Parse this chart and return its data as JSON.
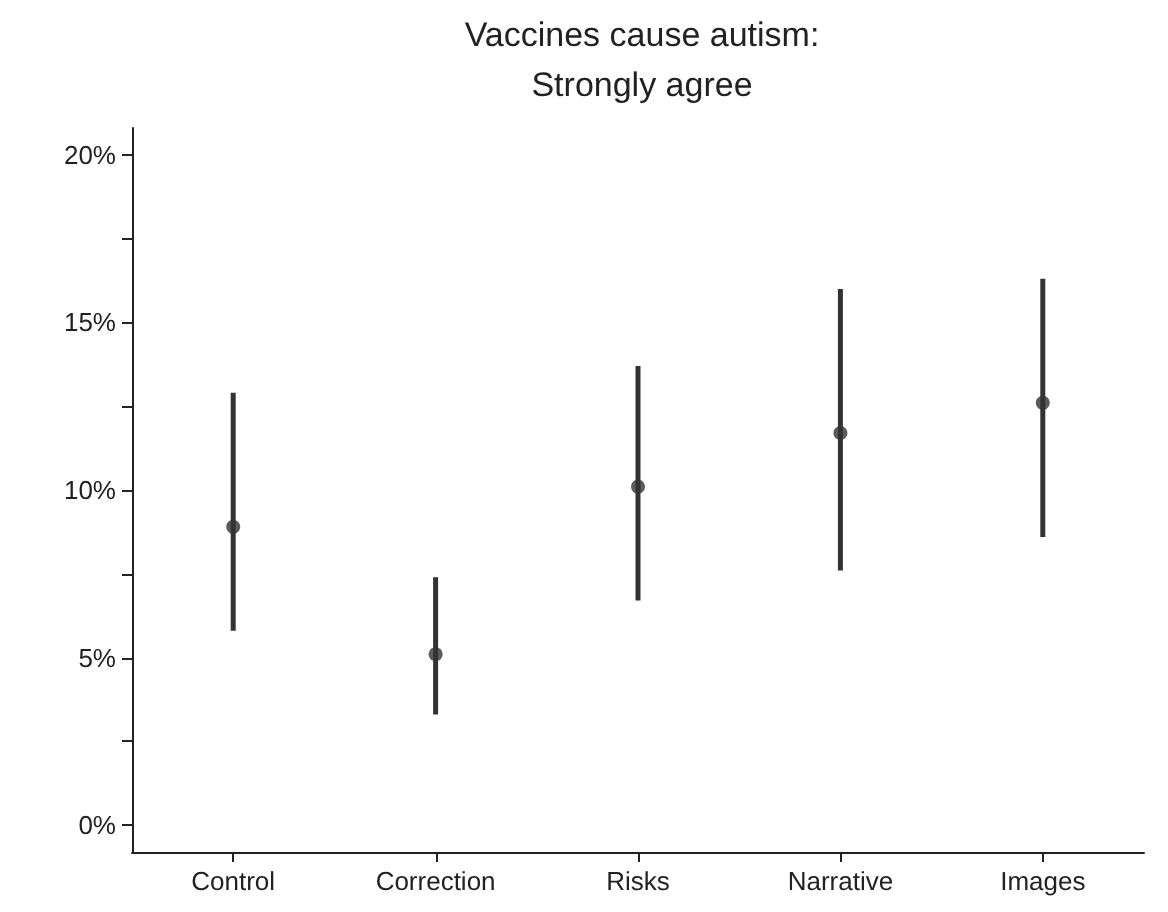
{
  "chart_data": {
    "type": "scatter",
    "title": "Vaccines cause autism:",
    "subtitle": "Strongly agree",
    "categories": [
      "Control",
      "Correction",
      "Risks",
      "Narrative",
      "Images"
    ],
    "values": [
      8.9,
      5.1,
      10.1,
      11.7,
      12.6
    ],
    "errors": [
      [
        5.8,
        12.9
      ],
      [
        3.3,
        7.4
      ],
      [
        6.7,
        13.7
      ],
      [
        7.6,
        16.0
      ],
      [
        8.6,
        16.3
      ]
    ],
    "color": "#333333",
    "marker": "circle",
    "ylim": [
      -0.8,
      20.8
    ],
    "yticks": [
      {
        "value": 0,
        "label": "0%"
      },
      {
        "value": 2.5,
        "label": null
      },
      {
        "value": 5,
        "label": "5%"
      },
      {
        "value": 7.5,
        "label": null
      },
      {
        "value": 10,
        "label": "10%"
      },
      {
        "value": 12.5,
        "label": null
      },
      {
        "value": 15,
        "label": "15%"
      },
      {
        "value": 17.5,
        "label": null
      },
      {
        "value": 20,
        "label": "20%"
      }
    ]
  }
}
